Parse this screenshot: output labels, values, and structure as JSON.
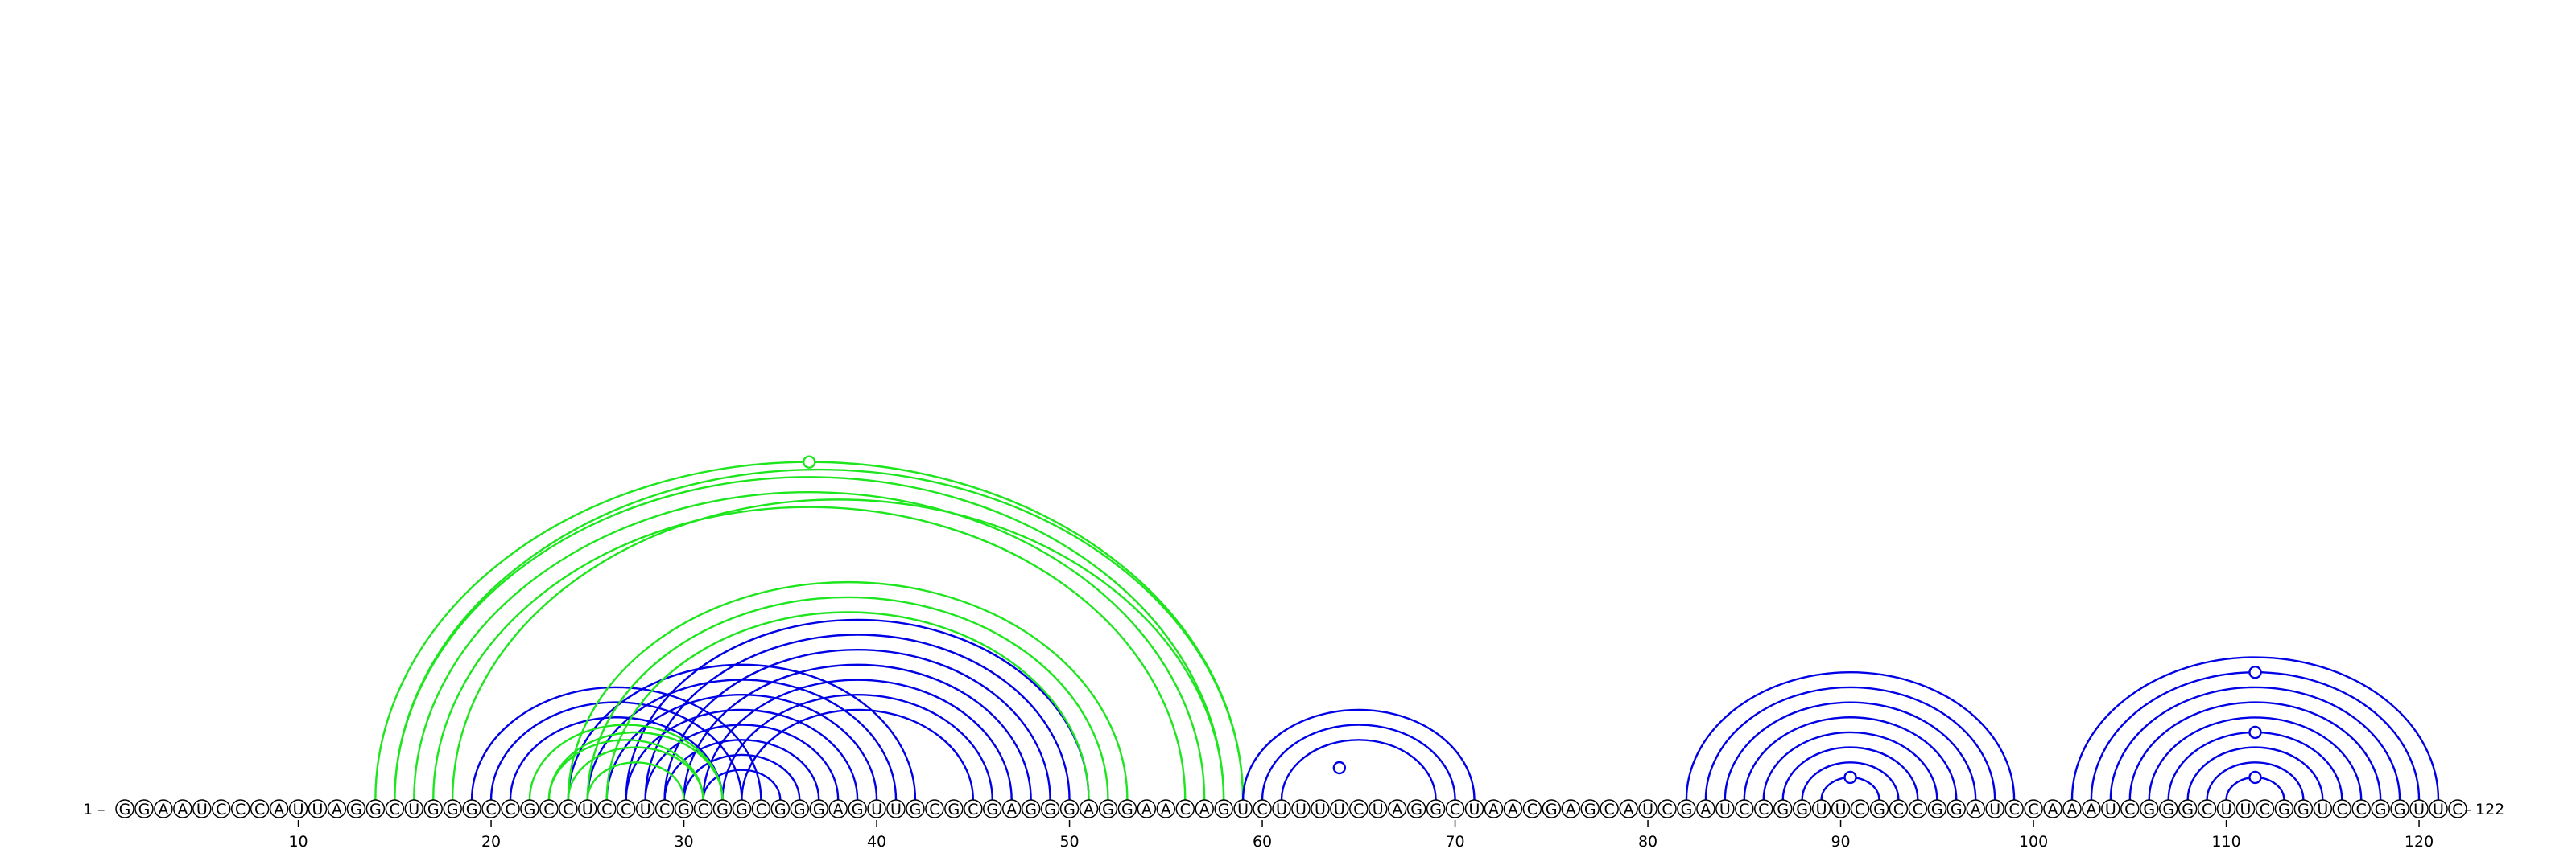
{
  "diagram": {
    "type": "rna-arc-diagram",
    "sequence": "GGAAUCCCAUUAGGCUGGGCCGCCUCCUCGCGGCGGGAGUUGCGCGAGGGAGGAACAGUCUUUUCUAGGCUAACGAGCAUCGAUCCGGUUCGCCGGAUCCAAAUCGGGCUUCGGUCCGGUUC",
    "length": 122,
    "start_label": "1",
    "end_label": "122",
    "ticks": [
      10,
      20,
      30,
      40,
      50,
      60,
      70,
      80,
      90,
      100,
      110,
      120
    ],
    "colors": {
      "blue": "#0000e6",
      "green": "#1ee61e"
    },
    "arcs": [
      [
        31,
        35,
        "blue"
      ],
      [
        30,
        36,
        "blue"
      ],
      [
        29,
        37,
        "blue"
      ],
      [
        28,
        38,
        "blue"
      ],
      [
        27,
        39,
        "blue"
      ],
      [
        26,
        40,
        "blue"
      ],
      [
        25,
        41,
        "blue"
      ],
      [
        24,
        42,
        "blue"
      ],
      [
        21,
        32,
        "blue"
      ],
      [
        20,
        33,
        "blue"
      ],
      [
        19,
        34,
        "blue"
      ],
      [
        33,
        45,
        "blue"
      ],
      [
        32,
        46,
        "blue"
      ],
      [
        31,
        47,
        "blue"
      ],
      [
        30,
        48,
        "blue"
      ],
      [
        29,
        49,
        "blue"
      ],
      [
        28,
        50,
        "blue"
      ],
      [
        27,
        51,
        "blue"
      ],
      [
        22,
        32,
        "green"
      ],
      [
        23,
        32,
        "green"
      ],
      [
        24,
        31,
        "green"
      ],
      [
        25,
        30,
        "green"
      ],
      [
        23,
        31,
        "green"
      ],
      [
        26,
        51,
        "green"
      ],
      [
        25,
        52,
        "green"
      ],
      [
        24,
        53,
        "green"
      ],
      [
        15,
        58,
        "green"
      ],
      [
        16,
        57,
        "green"
      ],
      [
        17,
        56,
        "green"
      ],
      [
        18,
        58,
        "green"
      ],
      [
        14,
        59,
        "green"
      ],
      [
        15,
        59,
        "green"
      ],
      [
        61,
        69,
        "blue"
      ],
      [
        60,
        70,
        "blue"
      ],
      [
        59,
        71,
        "blue"
      ],
      [
        89,
        92,
        "blue"
      ],
      [
        88,
        93,
        "blue"
      ],
      [
        87,
        94,
        "blue"
      ],
      [
        86,
        95,
        "blue"
      ],
      [
        85,
        96,
        "blue"
      ],
      [
        84,
        97,
        "blue"
      ],
      [
        83,
        98,
        "blue"
      ],
      [
        82,
        99,
        "blue"
      ],
      [
        110,
        113,
        "blue"
      ],
      [
        109,
        114,
        "blue"
      ],
      [
        108,
        115,
        "blue"
      ],
      [
        107,
        116,
        "blue"
      ],
      [
        106,
        117,
        "blue"
      ],
      [
        105,
        118,
        "blue"
      ],
      [
        104,
        119,
        "blue"
      ],
      [
        103,
        120,
        "blue"
      ],
      [
        102,
        121,
        "blue"
      ]
    ],
    "markers": [
      [
        36.5,
        "green"
      ],
      [
        64,
        "blue"
      ],
      [
        90.5,
        "blue"
      ],
      [
        111.5,
        "blue"
      ],
      [
        111.5,
        "blue"
      ],
      [
        111.5,
        "blue"
      ]
    ]
  }
}
